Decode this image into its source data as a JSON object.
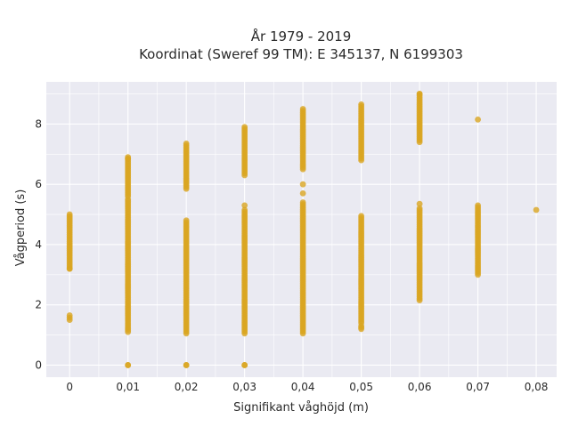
{
  "chart_data": {
    "type": "scatter",
    "title_lines": [
      "År 1979 - 2019",
      "Koordinat (Sweref 99 TM): E 345137, N 6199303"
    ],
    "xlabel": "Signifikant våghöjd (m)",
    "ylabel": "Vågperiod (s)",
    "x_ticks": [
      0,
      0.01,
      0.02,
      0.03,
      0.04,
      0.05,
      0.06,
      0.07,
      0.08
    ],
    "x_tick_labels": [
      "0",
      "0,01",
      "0,02",
      "0,03",
      "0,04",
      "0,05",
      "0,06",
      "0,07",
      "0,08"
    ],
    "y_ticks": [
      0,
      2,
      4,
      6,
      8
    ],
    "y_tick_labels": [
      "0",
      "2",
      "4",
      "6",
      "8"
    ],
    "xlim": [
      -0.004,
      0.0835
    ],
    "ylim": [
      -0.4,
      9.4
    ],
    "grid": true,
    "marker_color": "#daa520",
    "plot_background": "#eaeaf2",
    "columns": [
      {
        "x": 0.0,
        "ranges": [
          [
            1.5,
            1.65
          ],
          [
            3.2,
            5.0
          ]
        ]
      },
      {
        "x": 0.01,
        "ranges": [
          [
            0.0,
            0.0
          ],
          [
            1.1,
            5.5
          ],
          [
            5.6,
            6.9
          ]
        ]
      },
      {
        "x": 0.02,
        "ranges": [
          [
            0.0,
            0.0
          ],
          [
            1.05,
            4.8
          ],
          [
            5.85,
            7.35
          ]
        ]
      },
      {
        "x": 0.03,
        "ranges": [
          [
            0.0,
            0.0
          ],
          [
            1.05,
            5.15
          ],
          [
            6.3,
            7.9
          ]
        ]
      },
      {
        "x": 0.04,
        "ranges": [
          [
            1.05,
            5.4
          ],
          [
            6.5,
            8.5
          ]
        ]
      },
      {
        "x": 0.05,
        "ranges": [
          [
            1.2,
            1.3
          ],
          [
            1.4,
            4.95
          ],
          [
            6.8,
            8.65
          ]
        ]
      },
      {
        "x": 0.06,
        "ranges": [
          [
            2.15,
            5.2
          ],
          [
            7.4,
            9.0
          ]
        ]
      },
      {
        "x": 0.07,
        "ranges": [
          [
            3.0,
            5.3
          ]
        ]
      }
    ],
    "points": [
      {
        "x": 0.0,
        "y": 3.2
      },
      {
        "x": 0.01,
        "y": 6.85
      },
      {
        "x": 0.03,
        "y": 5.3
      },
      {
        "x": 0.04,
        "y": 5.7
      },
      {
        "x": 0.04,
        "y": 6.0
      },
      {
        "x": 0.06,
        "y": 5.35
      },
      {
        "x": 0.06,
        "y": 9.0
      },
      {
        "x": 0.07,
        "y": 8.15
      },
      {
        "x": 0.08,
        "y": 5.15
      }
    ]
  }
}
